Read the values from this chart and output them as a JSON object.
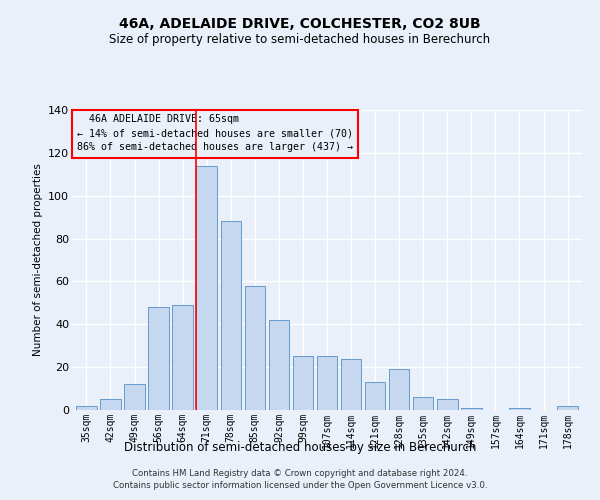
{
  "title1": "46A, ADELAIDE DRIVE, COLCHESTER, CO2 8UB",
  "title2": "Size of property relative to semi-detached houses in Berechurch",
  "xlabel": "Distribution of semi-detached houses by size in Berechurch",
  "ylabel": "Number of semi-detached properties",
  "categories": [
    "35sqm",
    "42sqm",
    "49sqm",
    "56sqm",
    "64sqm",
    "71sqm",
    "78sqm",
    "85sqm",
    "92sqm",
    "99sqm",
    "107sqm",
    "114sqm",
    "121sqm",
    "128sqm",
    "135sqm",
    "142sqm",
    "149sqm",
    "157sqm",
    "164sqm",
    "171sqm",
    "178sqm"
  ],
  "values": [
    2,
    5,
    12,
    48,
    49,
    114,
    88,
    58,
    42,
    25,
    25,
    24,
    13,
    19,
    6,
    5,
    1,
    0,
    1,
    0,
    2
  ],
  "bar_color": "#c5d8f0",
  "bar_edge_color": "#6699cc",
  "ylim": [
    0,
    140
  ],
  "yticks": [
    0,
    20,
    40,
    60,
    80,
    100,
    120,
    140
  ],
  "property_label": "46A ADELAIDE DRIVE: 65sqm",
  "pct_smaller": 14,
  "pct_larger": 86,
  "n_smaller": 70,
  "n_larger": 437,
  "vline_x_index": 4.57,
  "footer1": "Contains HM Land Registry data © Crown copyright and database right 2024.",
  "footer2": "Contains public sector information licensed under the Open Government Licence v3.0.",
  "bg_color": "#eaf0f9",
  "grid_color": "#ffffff"
}
